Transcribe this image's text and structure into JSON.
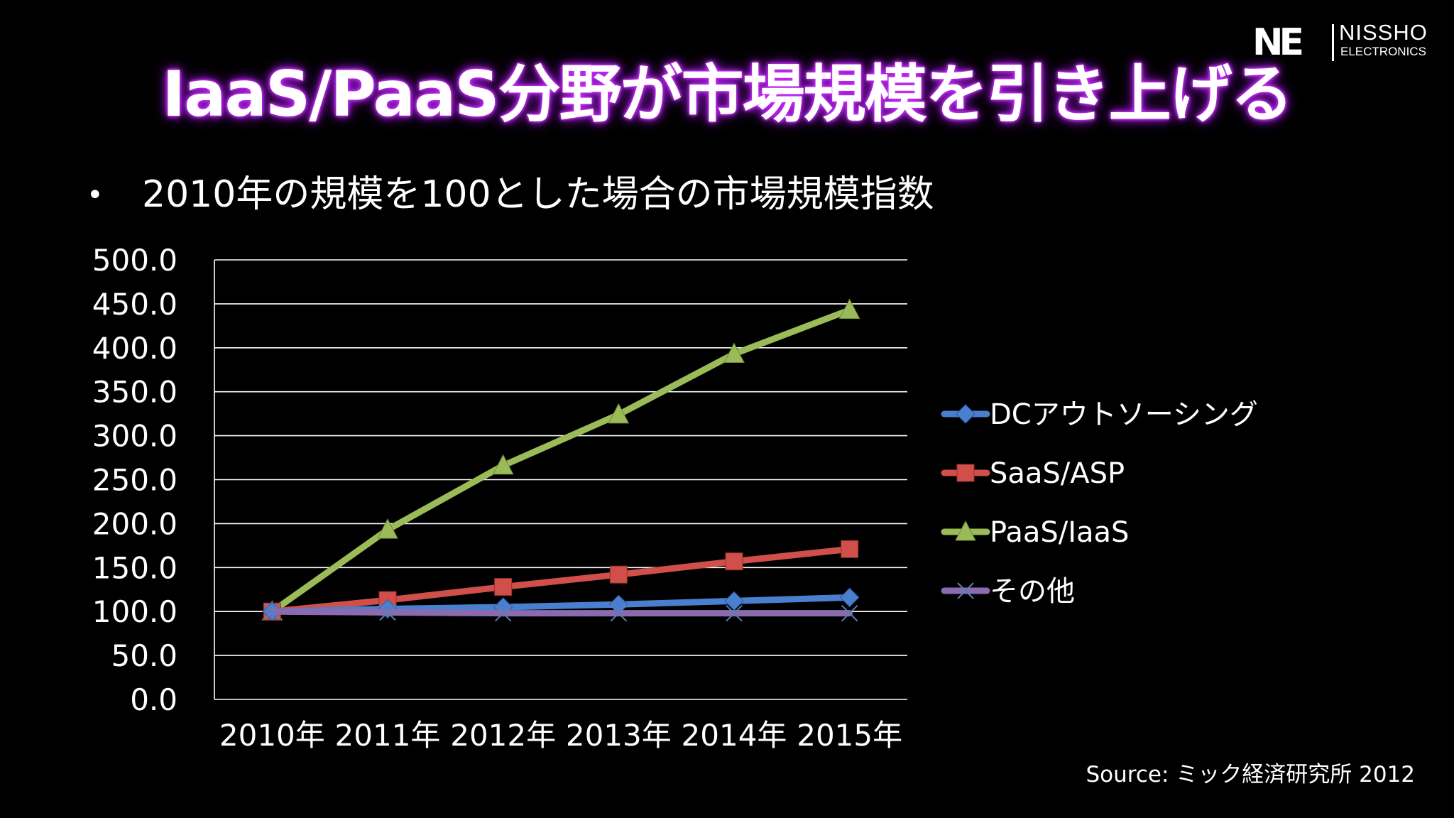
{
  "slide": {
    "title": "IaaS/PaaS分野が市場規模を引き上げる",
    "bullet": "•",
    "subtitle": "2010年の規模を100とした場合の市場規模指数",
    "source": "Source: ミック経済研究所 2012"
  },
  "logo": {
    "mark": "NE",
    "name": "NISSHO",
    "sub": "ELECTRONICS"
  },
  "chart_data": {
    "type": "line",
    "categories": [
      "2010年",
      "2011年",
      "2012年",
      "2013年",
      "2014年",
      "2015年"
    ],
    "ylim": [
      0,
      500
    ],
    "ytick_step": 50,
    "ytick_labels": [
      "0.0",
      "50.0",
      "100.0",
      "150.0",
      "200.0",
      "250.0",
      "300.0",
      "350.0",
      "400.0",
      "450.0",
      "500.0"
    ],
    "grid": true,
    "legend_position": "right",
    "series": [
      {
        "name": "DCアウトソーシング",
        "values": [
          100,
          103,
          105,
          108,
          112,
          116
        ],
        "color": "#4a7fd0",
        "marker": "diamond"
      },
      {
        "name": "SaaS/ASP",
        "values": [
          100,
          113,
          128,
          142,
          157,
          171
        ],
        "color": "#d04f4a",
        "marker": "square"
      },
      {
        "name": "PaaS/IaaS",
        "values": [
          100,
          193,
          266,
          324,
          393,
          443
        ],
        "color": "#9bbb59",
        "marker": "triangle"
      },
      {
        "name": "その他",
        "values": [
          100,
          99,
          98,
          98,
          98,
          98
        ],
        "color": "#8a6bb0",
        "marker": "x"
      }
    ]
  }
}
